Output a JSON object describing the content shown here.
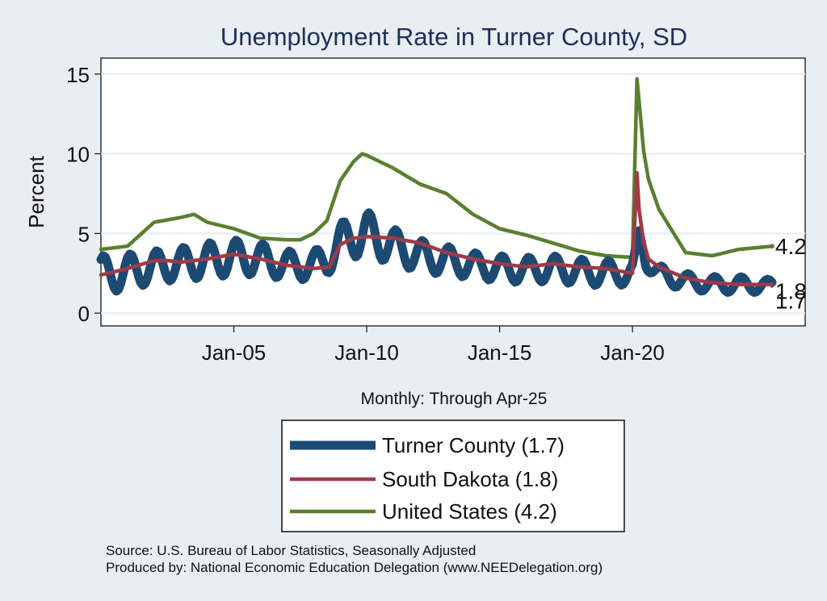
{
  "chart_data": {
    "type": "line",
    "title": "Unemployment Rate in Turner  County, SD",
    "ylabel": "Percent",
    "xlabel": "Monthly: Through Apr-25",
    "xlim": [
      2000.0,
      2026.5
    ],
    "ylim": [
      -0.8,
      16
    ],
    "yticks": [
      0,
      5,
      10,
      15
    ],
    "xticks": [
      {
        "label": "Jan-05",
        "value": 2005.0
      },
      {
        "label": "Jan-10",
        "value": 2010.0
      },
      {
        "label": "Jan-15",
        "value": 2015.0
      },
      {
        "label": "Jan-20",
        "value": 2020.0
      }
    ],
    "grid": true,
    "legend_position": "bottom",
    "series": [
      {
        "name": "Turner  County",
        "legend_label": "Turner  County (1.7)",
        "end_label": "1.7",
        "color": "#1c4a73",
        "style": "thick-seasonal",
        "x": [
          2000.0,
          2001.0,
          2002.0,
          2003.0,
          2004.0,
          2005.0,
          2006.0,
          2007.0,
          2008.0,
          2008.5,
          2009.0,
          2009.5,
          2010.0,
          2011.0,
          2012.0,
          2013.0,
          2014.0,
          2015.0,
          2016.0,
          2017.0,
          2018.0,
          2019.0,
          2020.0,
          2020.15,
          2020.25,
          2020.5,
          2021.0,
          2022.0,
          2023.0,
          2024.0,
          2025.25
        ],
        "y": [
          2.4,
          2.6,
          2.9,
          3.1,
          3.3,
          3.5,
          3.4,
          3.0,
          3.0,
          3.4,
          4.4,
          4.9,
          5.0,
          4.2,
          3.6,
          3.3,
          3.0,
          2.8,
          2.7,
          2.8,
          2.6,
          2.5,
          2.5,
          4.0,
          5.0,
          3.4,
          2.4,
          2.0,
          1.8,
          1.8,
          1.7
        ],
        "seasonal_amplitude": [
          1.2,
          1.1,
          1.0,
          1.0,
          1.1,
          1.1,
          1.0,
          0.9,
          0.9,
          1.0,
          1.2,
          1.4,
          1.4,
          1.1,
          1.0,
          0.9,
          0.8,
          0.8,
          0.8,
          0.8,
          0.8,
          0.8,
          0.7,
          0.3,
          0.3,
          0.6,
          0.6,
          0.5,
          0.5,
          0.5,
          0.4
        ]
      },
      {
        "name": "South Dakota",
        "legend_label": "South Dakota (1.8)",
        "end_label": "1.8",
        "color": "#a03a47",
        "style": "line",
        "x": [
          2000.0,
          2001.0,
          2002.0,
          2002.5,
          2003.0,
          2004.0,
          2005.0,
          2006.0,
          2007.0,
          2008.0,
          2008.6,
          2009.0,
          2009.5,
          2010.0,
          2011.0,
          2012.0,
          2013.0,
          2014.0,
          2015.0,
          2016.0,
          2017.0,
          2018.0,
          2019.0,
          2020.0,
          2020.17,
          2020.25,
          2020.42,
          2020.6,
          2021.0,
          2022.0,
          2023.0,
          2024.0,
          2025.25
        ],
        "y": [
          2.4,
          2.8,
          3.3,
          3.3,
          3.2,
          3.4,
          3.7,
          3.4,
          3.0,
          2.8,
          2.9,
          4.3,
          4.7,
          4.8,
          4.7,
          4.4,
          3.8,
          3.4,
          3.1,
          2.9,
          3.1,
          2.9,
          2.8,
          2.5,
          8.8,
          6.5,
          4.5,
          3.4,
          2.9,
          2.2,
          1.9,
          1.8,
          1.8
        ]
      },
      {
        "name": "United States",
        "legend_label": "United States (4.2)",
        "end_label": "4.2",
        "color": "#5a7f2e",
        "style": "line",
        "x": [
          2000.0,
          2001.0,
          2002.0,
          2003.0,
          2003.5,
          2004.0,
          2005.0,
          2006.0,
          2007.0,
          2007.5,
          2008.0,
          2008.5,
          2009.0,
          2009.5,
          2009.83,
          2010.0,
          2010.5,
          2011.0,
          2012.0,
          2013.0,
          2014.0,
          2015.0,
          2016.0,
          2017.0,
          2018.0,
          2019.0,
          2020.0,
          2020.17,
          2020.25,
          2020.42,
          2020.6,
          2021.0,
          2022.0,
          2023.0,
          2024.0,
          2025.25
        ],
        "y": [
          4.0,
          4.2,
          5.7,
          6.0,
          6.2,
          5.7,
          5.3,
          4.7,
          4.6,
          4.6,
          5.0,
          5.8,
          8.3,
          9.5,
          10.0,
          9.9,
          9.5,
          9.1,
          8.1,
          7.5,
          6.2,
          5.3,
          4.9,
          4.4,
          3.9,
          3.6,
          3.5,
          14.7,
          13.3,
          10.2,
          8.4,
          6.5,
          3.8,
          3.6,
          4.0,
          4.2
        ]
      }
    ]
  },
  "note_source": "Source: U.S. Bureau of Labor Statistics, Seasonally Adjusted",
  "note_producer": "Produced by: National Economic Education Delegation (www.NEEDelegation.org)"
}
